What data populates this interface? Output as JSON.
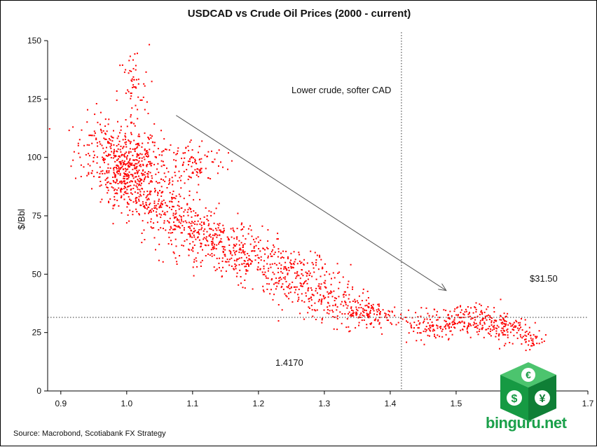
{
  "chart_data": {
    "type": "scatter",
    "title": "USDCAD vs Crude Oil Prices (2000 - current)",
    "xlabel": "",
    "ylabel": "$/Bbl",
    "xlim": [
      0.88,
      1.7
    ],
    "ylim": [
      0,
      150
    ],
    "x_ticks": [
      "0.9",
      "1.0",
      "1.1",
      "1.2",
      "1.3",
      "1.4",
      "1.5",
      "1.6",
      "1.7"
    ],
    "y_ticks": [
      "0",
      "25",
      "50",
      "75",
      "100",
      "125",
      "150"
    ],
    "grid": false,
    "color": "#ff0000",
    "reference_lines": {
      "vertical_x": 1.417,
      "horizontal_y": 31.5,
      "vertical_label": "1.4170",
      "horizontal_label": "$31.50"
    },
    "annotation": {
      "text": "Lower crude, softer CAD",
      "arrow_from": [
        1.075,
        118
      ],
      "arrow_to": [
        1.485,
        43
      ]
    },
    "clusters": [
      {
        "x": 0.97,
        "y": 103,
        "sx": 0.025,
        "sy": 8,
        "n": 180
      },
      {
        "x": 1.0,
        "y": 92,
        "sx": 0.02,
        "sy": 6,
        "n": 260
      },
      {
        "x": 1.03,
        "y": 100,
        "sx": 0.02,
        "sy": 6,
        "n": 120
      },
      {
        "x": 1.01,
        "y": 128,
        "sx": 0.012,
        "sy": 10,
        "n": 60
      },
      {
        "x": 1.1,
        "y": 98,
        "sx": 0.025,
        "sy": 5,
        "n": 110
      },
      {
        "x": 1.04,
        "y": 80,
        "sx": 0.03,
        "sy": 5,
        "n": 180
      },
      {
        "x": 1.09,
        "y": 70,
        "sx": 0.03,
        "sy": 5,
        "n": 150
      },
      {
        "x": 1.14,
        "y": 64,
        "sx": 0.03,
        "sy": 5,
        "n": 160
      },
      {
        "x": 1.18,
        "y": 56,
        "sx": 0.03,
        "sy": 5,
        "n": 140
      },
      {
        "x": 1.24,
        "y": 52,
        "sx": 0.025,
        "sy": 5,
        "n": 140
      },
      {
        "x": 1.28,
        "y": 44,
        "sx": 0.03,
        "sy": 5,
        "n": 120
      },
      {
        "x": 1.33,
        "y": 36,
        "sx": 0.03,
        "sy": 4,
        "n": 130
      },
      {
        "x": 1.38,
        "y": 32,
        "sx": 0.025,
        "sy": 3,
        "n": 90
      },
      {
        "x": 1.47,
        "y": 28,
        "sx": 0.03,
        "sy": 3,
        "n": 110
      },
      {
        "x": 1.52,
        "y": 31,
        "sx": 0.03,
        "sy": 3,
        "n": 140
      },
      {
        "x": 1.57,
        "y": 27,
        "sx": 0.02,
        "sy": 3,
        "n": 110
      },
      {
        "x": 1.61,
        "y": 22,
        "sx": 0.012,
        "sy": 2,
        "n": 40
      }
    ]
  },
  "source": "Source: Macrobond, Scotiabank FX Strategy",
  "watermark": {
    "text": "binguru.net",
    "icon": "currency-cube-icon"
  }
}
